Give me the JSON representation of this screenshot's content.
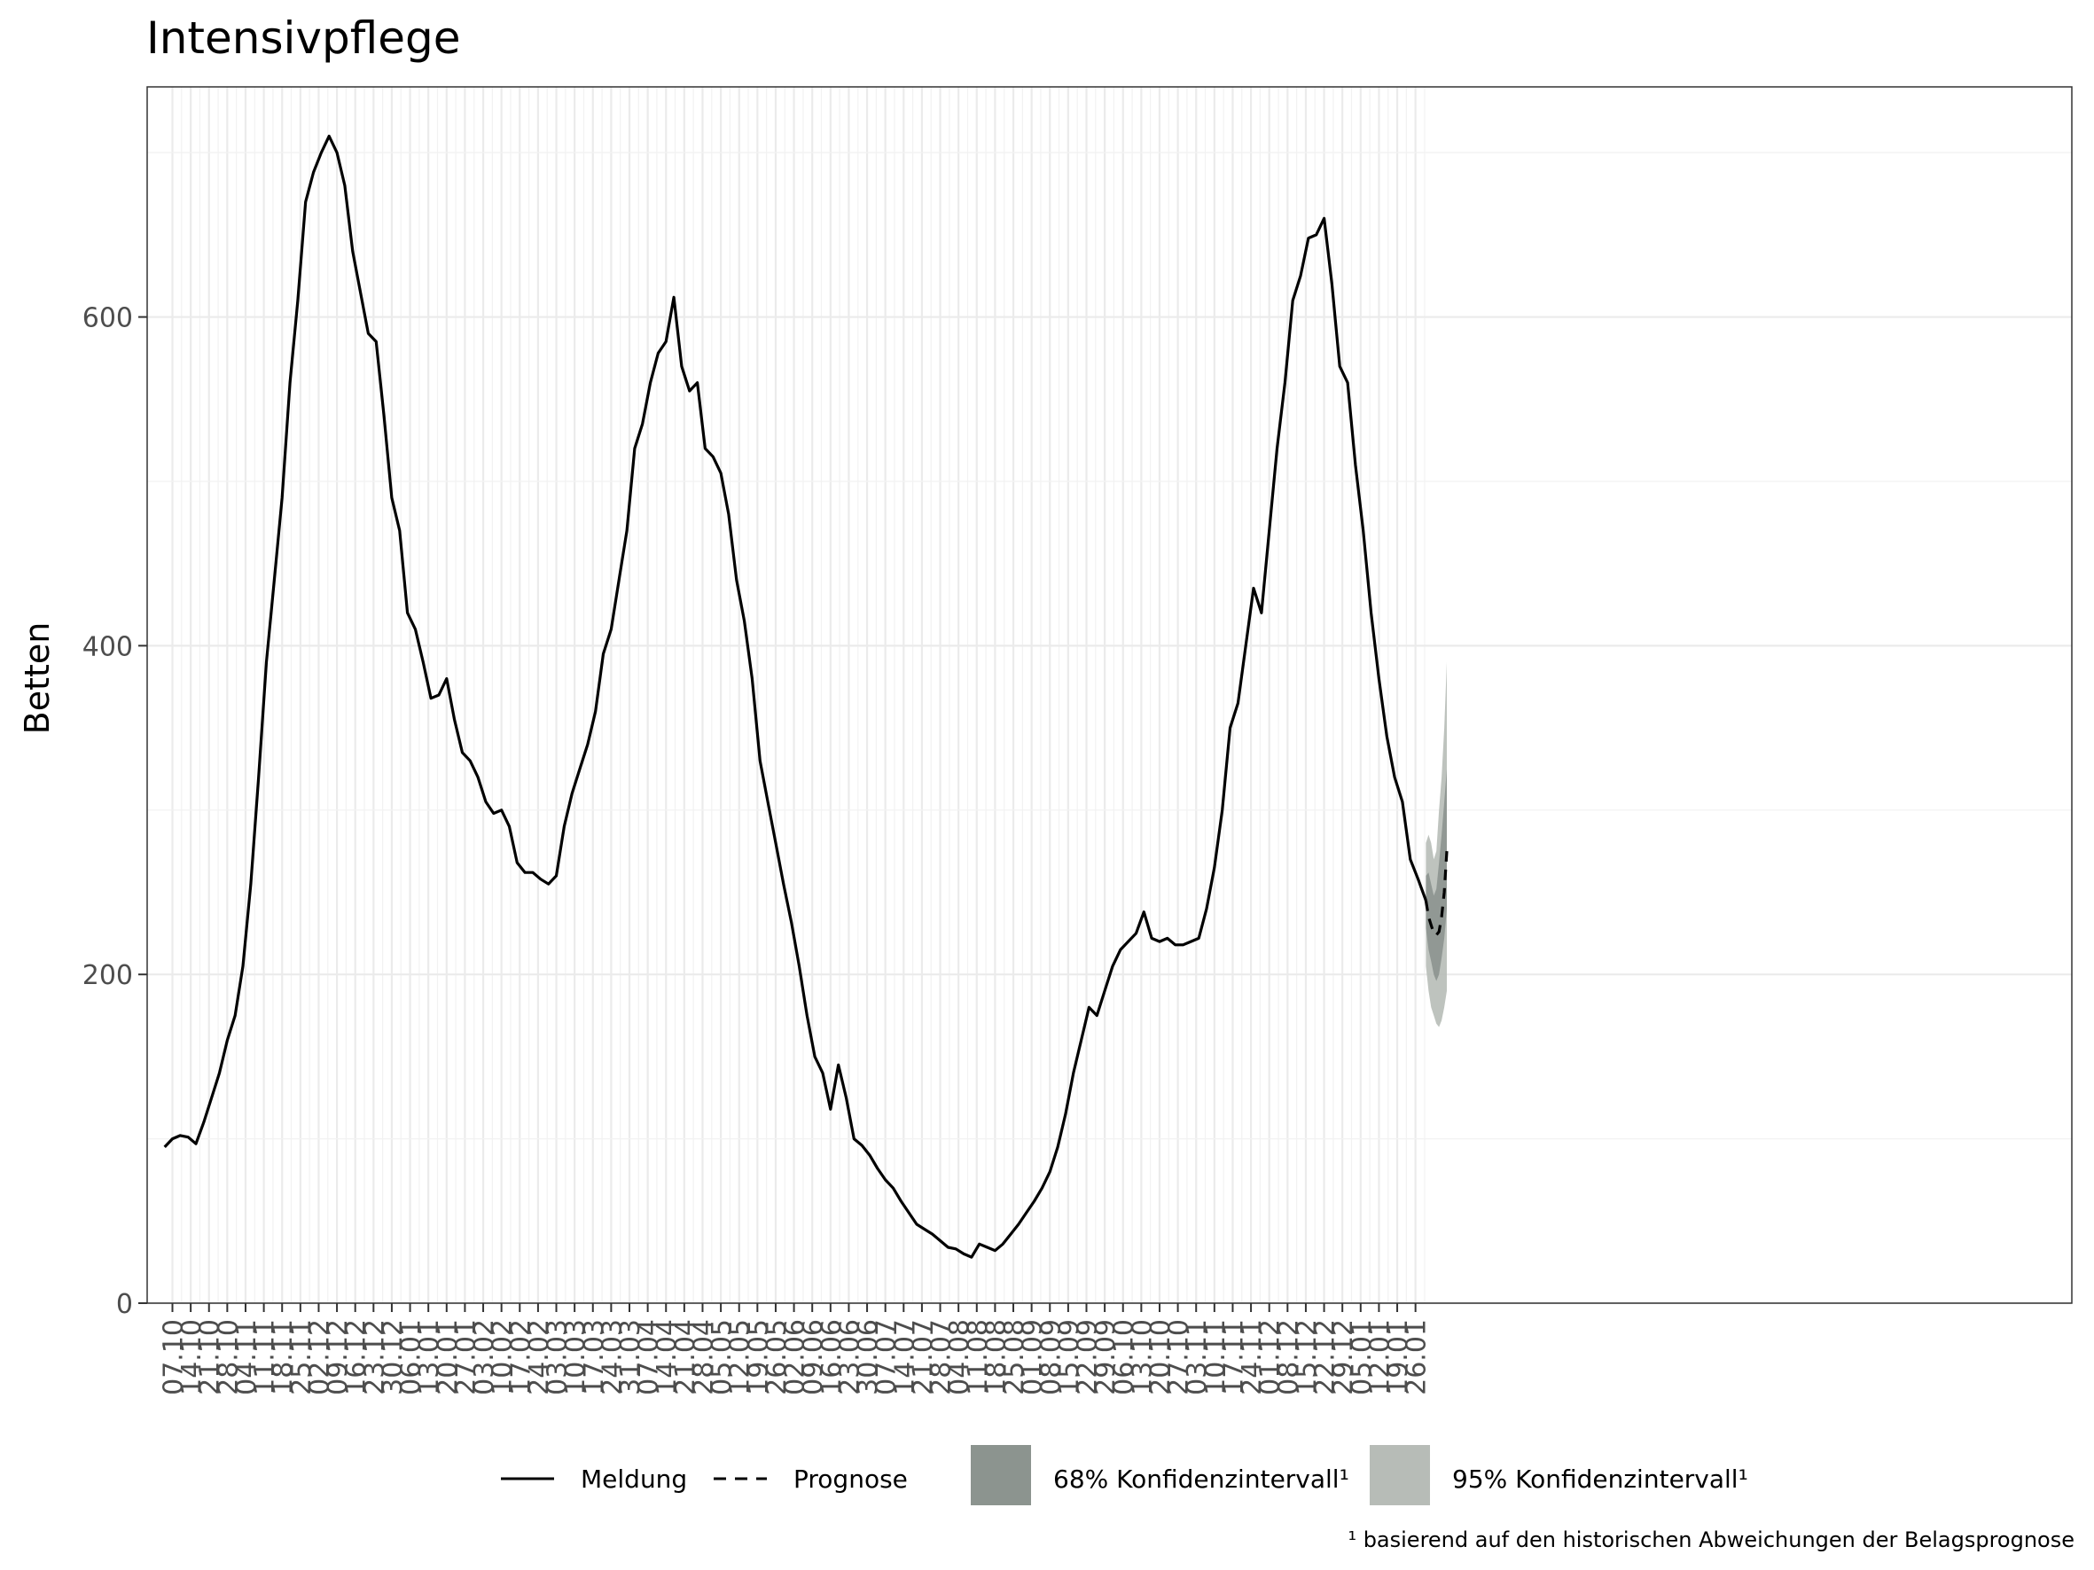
{
  "chart_data": {
    "type": "line",
    "title": "Intensivpflege",
    "xlabel": "",
    "ylabel": "Betten",
    "ylim": [
      0,
      740
    ],
    "yticks": [
      0,
      200,
      400,
      600
    ],
    "x_date_start": "2021-10-04",
    "x_date_end": "2023-01-27",
    "xtick_labels": [
      "07.10",
      "14.10",
      "21.10",
      "28.10",
      "04.11",
      "11.11",
      "18.11",
      "25.11",
      "02.12",
      "09.12",
      "16.12",
      "23.12",
      "30.12",
      "06.01",
      "13.01",
      "20.01",
      "27.01",
      "03.02",
      "10.02",
      "17.02",
      "24.02",
      "03.03",
      "10.03",
      "17.03",
      "24.03",
      "31.03",
      "07.04",
      "14.04",
      "21.04",
      "28.04",
      "05.05",
      "12.05",
      "19.05",
      "26.05",
      "02.06",
      "09.06",
      "16.06",
      "23.06",
      "30.06",
      "07.07",
      "14.07",
      "21.07",
      "28.07",
      "04.08",
      "11.08",
      "18.08",
      "25.08",
      "01.09",
      "08.09",
      "15.09",
      "22.09",
      "29.09",
      "06.10",
      "13.10",
      "20.10",
      "27.10",
      "03.11",
      "10.11",
      "17.11",
      "24.11",
      "01.12",
      "08.12",
      "15.12",
      "22.12",
      "29.12",
      "05.01",
      "12.01",
      "19.01",
      "26.01"
    ],
    "grid": true,
    "series": [
      {
        "name": "Meldung",
        "style": "solid",
        "color": "#000000",
        "points": [
          [
            "2021-10-04",
            95
          ],
          [
            "2021-10-07",
            100
          ],
          [
            "2021-10-10",
            102
          ],
          [
            "2021-10-13",
            101
          ],
          [
            "2021-10-16",
            97
          ],
          [
            "2021-10-19",
            110
          ],
          [
            "2021-10-22",
            125
          ],
          [
            "2021-10-25",
            140
          ],
          [
            "2021-10-28",
            160
          ],
          [
            "2021-10-31",
            175
          ],
          [
            "2021-11-03",
            205
          ],
          [
            "2021-11-06",
            255
          ],
          [
            "2021-11-09",
            320
          ],
          [
            "2021-11-12",
            390
          ],
          [
            "2021-11-15",
            440
          ],
          [
            "2021-11-18",
            490
          ],
          [
            "2021-11-21",
            560
          ],
          [
            "2021-11-24",
            610
          ],
          [
            "2021-11-27",
            670
          ],
          [
            "2021-11-30",
            688
          ],
          [
            "2021-12-03",
            700
          ],
          [
            "2021-12-06",
            710
          ],
          [
            "2021-12-09",
            700
          ],
          [
            "2021-12-12",
            680
          ],
          [
            "2021-12-15",
            640
          ],
          [
            "2021-12-18",
            615
          ],
          [
            "2021-12-21",
            590
          ],
          [
            "2021-12-24",
            585
          ],
          [
            "2021-12-27",
            540
          ],
          [
            "2021-12-30",
            490
          ],
          [
            "2022-01-02",
            470
          ],
          [
            "2022-01-05",
            420
          ],
          [
            "2022-01-08",
            410
          ],
          [
            "2022-01-11",
            390
          ],
          [
            "2022-01-14",
            368
          ],
          [
            "2022-01-17",
            370
          ],
          [
            "2022-01-20",
            380
          ],
          [
            "2022-01-23",
            355
          ],
          [
            "2022-01-26",
            335
          ],
          [
            "2022-01-29",
            330
          ],
          [
            "2022-02-01",
            320
          ],
          [
            "2022-02-04",
            305
          ],
          [
            "2022-02-07",
            298
          ],
          [
            "2022-02-10",
            300
          ],
          [
            "2022-02-13",
            290
          ],
          [
            "2022-02-16",
            268
          ],
          [
            "2022-02-19",
            262
          ],
          [
            "2022-02-22",
            262
          ],
          [
            "2022-02-25",
            258
          ],
          [
            "2022-02-28",
            255
          ],
          [
            "2022-03-03",
            260
          ],
          [
            "2022-03-06",
            290
          ],
          [
            "2022-03-09",
            310
          ],
          [
            "2022-03-12",
            325
          ],
          [
            "2022-03-15",
            340
          ],
          [
            "2022-03-18",
            360
          ],
          [
            "2022-03-21",
            395
          ],
          [
            "2022-03-24",
            410
          ],
          [
            "2022-03-27",
            440
          ],
          [
            "2022-03-30",
            470
          ],
          [
            "2022-04-02",
            520
          ],
          [
            "2022-04-05",
            535
          ],
          [
            "2022-04-08",
            560
          ],
          [
            "2022-04-11",
            578
          ],
          [
            "2022-04-14",
            585
          ],
          [
            "2022-04-17",
            612
          ],
          [
            "2022-04-20",
            570
          ],
          [
            "2022-04-23",
            555
          ],
          [
            "2022-04-26",
            560
          ],
          [
            "2022-04-29",
            520
          ],
          [
            "2022-05-02",
            515
          ],
          [
            "2022-05-05",
            505
          ],
          [
            "2022-05-08",
            480
          ],
          [
            "2022-05-11",
            440
          ],
          [
            "2022-05-14",
            415
          ],
          [
            "2022-05-17",
            380
          ],
          [
            "2022-05-20",
            330
          ],
          [
            "2022-05-23",
            305
          ],
          [
            "2022-05-26",
            280
          ],
          [
            "2022-05-29",
            255
          ],
          [
            "2022-06-01",
            232
          ],
          [
            "2022-06-04",
            205
          ],
          [
            "2022-06-07",
            175
          ],
          [
            "2022-06-10",
            150
          ],
          [
            "2022-06-13",
            140
          ],
          [
            "2022-06-16",
            118
          ],
          [
            "2022-06-19",
            145
          ],
          [
            "2022-06-22",
            125
          ],
          [
            "2022-06-25",
            100
          ],
          [
            "2022-06-28",
            96
          ],
          [
            "2022-07-01",
            90
          ],
          [
            "2022-07-04",
            82
          ],
          [
            "2022-07-07",
            75
          ],
          [
            "2022-07-10",
            70
          ],
          [
            "2022-07-13",
            62
          ],
          [
            "2022-07-16",
            55
          ],
          [
            "2022-07-19",
            48
          ],
          [
            "2022-07-22",
            45
          ],
          [
            "2022-07-25",
            42
          ],
          [
            "2022-07-28",
            38
          ],
          [
            "2022-07-31",
            34
          ],
          [
            "2022-08-03",
            33
          ],
          [
            "2022-08-06",
            30
          ],
          [
            "2022-08-09",
            28
          ],
          [
            "2022-08-12",
            36
          ],
          [
            "2022-08-15",
            34
          ],
          [
            "2022-08-18",
            32
          ],
          [
            "2022-08-21",
            36
          ],
          [
            "2022-08-24",
            42
          ],
          [
            "2022-08-27",
            48
          ],
          [
            "2022-08-30",
            55
          ],
          [
            "2022-09-02",
            62
          ],
          [
            "2022-09-05",
            70
          ],
          [
            "2022-09-08",
            80
          ],
          [
            "2022-09-11",
            95
          ],
          [
            "2022-09-14",
            115
          ],
          [
            "2022-09-17",
            140
          ],
          [
            "2022-09-20",
            160
          ],
          [
            "2022-09-23",
            180
          ],
          [
            "2022-09-26",
            175
          ],
          [
            "2022-09-29",
            190
          ],
          [
            "2022-10-02",
            205
          ],
          [
            "2022-10-05",
            215
          ],
          [
            "2022-10-08",
            220
          ],
          [
            "2022-10-11",
            225
          ],
          [
            "2022-10-14",
            238
          ],
          [
            "2022-10-17",
            222
          ],
          [
            "2022-10-20",
            220
          ],
          [
            "2022-10-23",
            222
          ],
          [
            "2022-10-26",
            218
          ],
          [
            "2022-10-29",
            218
          ],
          [
            "2022-11-01",
            220
          ],
          [
            "2022-11-04",
            222
          ],
          [
            "2022-11-07",
            240
          ],
          [
            "2022-11-10",
            265
          ],
          [
            "2022-11-13",
            300
          ],
          [
            "2022-11-16",
            350
          ],
          [
            "2022-11-19",
            365
          ],
          [
            "2022-11-22",
            400
          ],
          [
            "2022-11-25",
            435
          ],
          [
            "2022-11-28",
            420
          ],
          [
            "2022-12-01",
            470
          ],
          [
            "2022-12-04",
            520
          ],
          [
            "2022-12-07",
            560
          ],
          [
            "2022-12-10",
            610
          ],
          [
            "2022-12-13",
            625
          ],
          [
            "2022-12-16",
            648
          ],
          [
            "2022-12-19",
            650
          ],
          [
            "2022-12-22",
            660
          ],
          [
            "2022-12-25",
            620
          ],
          [
            "2022-12-28",
            570
          ],
          [
            "2022-12-31",
            560
          ],
          [
            "2023-01-03",
            510
          ],
          [
            "2023-01-06",
            470
          ],
          [
            "2023-01-09",
            420
          ],
          [
            "2023-01-12",
            380
          ],
          [
            "2023-01-15",
            345
          ],
          [
            "2023-01-18",
            320
          ],
          [
            "2023-01-21",
            305
          ],
          [
            "2023-01-24",
            270
          ],
          [
            "2023-01-27",
            258
          ],
          [
            "2023-01-30",
            245
          ]
        ]
      },
      {
        "name": "Prognose",
        "style": "dashed",
        "color": "#000000",
        "points": [
          [
            "2023-01-30",
            245
          ],
          [
            "2023-01-31",
            235
          ],
          [
            "2023-02-01",
            230
          ],
          [
            "2023-02-02",
            225
          ],
          [
            "2023-02-03",
            224
          ],
          [
            "2023-02-04",
            226
          ],
          [
            "2023-02-05",
            235
          ],
          [
            "2023-02-06",
            250
          ],
          [
            "2023-02-07",
            275
          ]
        ]
      }
    ],
    "bands": [
      {
        "name": "95% Konfidenzintervall¹",
        "color": "#b7bcb7",
        "dates": [
          "2023-01-30",
          "2023-01-31",
          "2023-02-01",
          "2023-02-02",
          "2023-02-03",
          "2023-02-04",
          "2023-02-05",
          "2023-02-06",
          "2023-02-07"
        ],
        "lower": [
          205,
          190,
          180,
          175,
          170,
          168,
          172,
          180,
          190
        ],
        "upper": [
          280,
          285,
          280,
          270,
          275,
          300,
          320,
          350,
          390
        ]
      },
      {
        "name": "68% Konfidenzintervall¹",
        "color": "#8c948f",
        "dates": [
          "2023-01-30",
          "2023-01-31",
          "2023-02-01",
          "2023-02-02",
          "2023-02-03",
          "2023-02-04",
          "2023-02-05",
          "2023-02-06",
          "2023-02-07"
        ],
        "lower": [
          228,
          215,
          208,
          200,
          196,
          200,
          210,
          222,
          240
        ],
        "upper": [
          260,
          262,
          255,
          248,
          252,
          268,
          285,
          305,
          325
        ]
      }
    ],
    "legend_position": "bottom"
  },
  "legend": {
    "meldung": "Meldung",
    "prognose": "Prognose",
    "ci68": "68% Konfidenzintervall¹",
    "ci95": "95% Konfidenzintervall¹"
  },
  "footnote": "¹ basierend auf den historischen Abweichungen der Belagsprognose"
}
